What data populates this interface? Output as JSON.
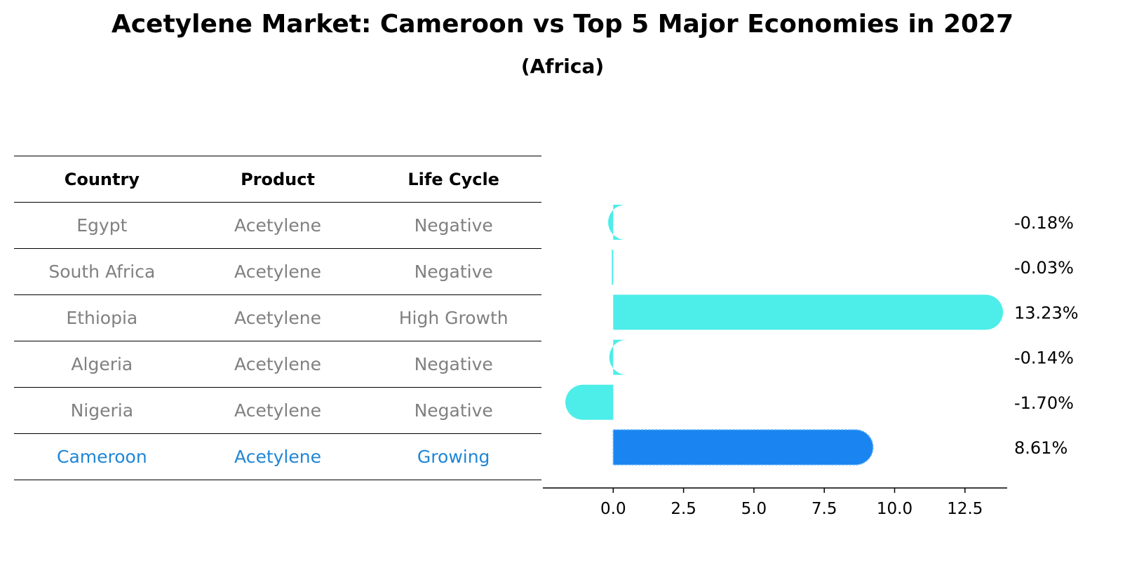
{
  "chart_title": "Acetylene Market: Cameroon vs Top 5 Major Economies in 2027",
  "chart_subtitle": "(Africa)",
  "table": {
    "headers": [
      "Country",
      "Product",
      "Life Cycle"
    ],
    "rows": [
      [
        "Egypt",
        "Acetylene",
        "Negative"
      ],
      [
        "South Africa",
        "Acetylene",
        "Negative"
      ],
      [
        "Ethiopia",
        "Acetylene",
        "High Growth"
      ],
      [
        "Algeria",
        "Acetylene",
        "Negative"
      ],
      [
        "Nigeria",
        "Acetylene",
        "Negative"
      ],
      [
        "Cameroon",
        "Acetylene",
        "Growing"
      ]
    ]
  },
  "chart_data": {
    "type": "bar",
    "orientation": "horizontal",
    "title": "Acetylene Market: Cameroon vs Top 5 Major Economies in 2027",
    "subtitle": "(Africa)",
    "categories": [
      "Egypt",
      "South Africa",
      "Ethiopia",
      "Algeria",
      "Nigeria",
      "Cameroon"
    ],
    "values": [
      -0.18,
      -0.03,
      13.23,
      -0.14,
      -1.7,
      8.61
    ],
    "value_labels": [
      "-0.18%",
      "-0.03%",
      "13.23%",
      "-0.14%",
      "-1.70%",
      "8.61%"
    ],
    "highlight": "Cameroon",
    "xlim": [
      -2.5,
      14
    ],
    "xticks": [
      0.0,
      2.5,
      5.0,
      7.5,
      10.0,
      12.5
    ],
    "xtick_labels": [
      "0.0",
      "2.5",
      "5.0",
      "7.5",
      "10.0",
      "12.5"
    ],
    "colors": {
      "default": "#4dede9",
      "highlight": "#1a85f0"
    },
    "xlabel": "",
    "ylabel": "",
    "grid": false
  }
}
